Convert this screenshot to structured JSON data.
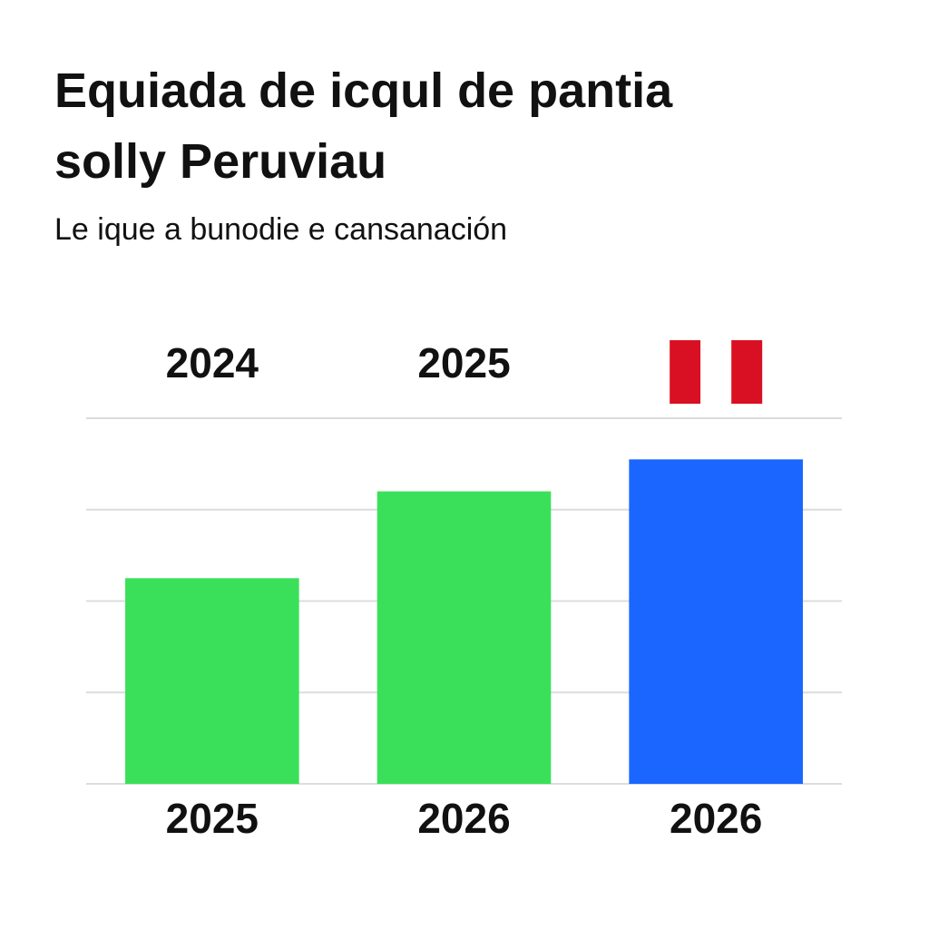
{
  "chart_data": {
    "type": "bar",
    "title": [
      "Equiada de icqul de pantia",
      "solly Peruviau"
    ],
    "subtitle": "Le ique a bunodie e cansanación",
    "top_labels": [
      "2024",
      "2025",
      null
    ],
    "categories": [
      "2025",
      "2026",
      "2026"
    ],
    "values": [
      2.25,
      3.2,
      3.55
    ],
    "colors": [
      "#3ae05a",
      "#3ae05a",
      "#1a66ff"
    ],
    "ylim": [
      0,
      4
    ],
    "yticks": [
      0,
      1,
      2,
      3,
      4
    ],
    "grid": true,
    "show_ytick_labels": false
  }
}
